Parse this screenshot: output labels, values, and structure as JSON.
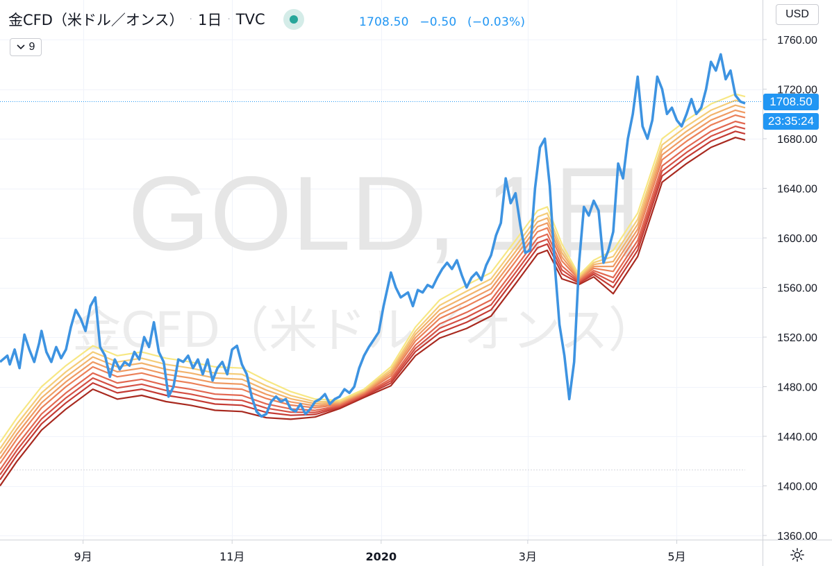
{
  "header": {
    "symbol_title": "金CFD（米ドル／オンス）",
    "interval": "1日",
    "exchange": "TVC",
    "separator": "·"
  },
  "quote": {
    "last": "1708.50",
    "change": "−0.50",
    "change_pct": "(−0.03%)"
  },
  "indicator_toggle": {
    "label": "9",
    "icon": "chevron-down-icon"
  },
  "currency": "USD",
  "price_tag": {
    "price": "1708.50",
    "countdown": "23:35:24"
  },
  "watermark": {
    "line1": "GOLD, 1日",
    "line2": "金CFD（米ドル／オンス）"
  },
  "settings_icon": "gear-icon",
  "colors": {
    "price_line": "#3d93e1",
    "ribbon": [
      "#f7e783",
      "#f5cc78",
      "#f2b36c",
      "#ef9a62",
      "#eb8058",
      "#e26750",
      "#d44f43",
      "#c43a33",
      "#a8291f"
    ]
  },
  "chart_data": {
    "type": "line",
    "title": "金CFD（米ドル／オンス）",
    "ylabel": "",
    "y_unit": "USD",
    "ylim": [
      1360,
      1770
    ],
    "xlim": [
      "2019-07-29",
      "2020-05-29"
    ],
    "y_ticks": [
      1360,
      1400,
      1440,
      1480,
      1520,
      1560,
      1600,
      1640,
      1680,
      1720,
      1760
    ],
    "y_tick_labels": [
      "1360.00",
      "1400.00",
      "1440.00",
      "1480.00",
      "1520.00",
      "1560.00",
      "1600.00",
      "1640.00",
      "1680.00",
      "1720.00",
      "1760.00"
    ],
    "x_ticks": [
      {
        "date": "2019-09-01",
        "label": "9月",
        "bold": false
      },
      {
        "date": "2019-11-01",
        "label": "11月",
        "bold": false
      },
      {
        "date": "2020-01-01",
        "label": "2020",
        "bold": true
      },
      {
        "date": "2020-03-01",
        "label": "3月",
        "bold": false
      },
      {
        "date": "2020-05-01",
        "label": "5月",
        "bold": false
      }
    ],
    "last_price": 1708.5,
    "dotted_level": 1414,
    "grid": true,
    "series": [
      {
        "name": "金CFD（米ドル／オンス）",
        "kind": "price",
        "points": [
          [
            "2019-07-29",
            1500
          ],
          [
            "2019-08-01",
            1505
          ],
          [
            "2019-08-02",
            1498
          ],
          [
            "2019-08-04",
            1510
          ],
          [
            "2019-08-06",
            1495
          ],
          [
            "2019-08-08",
            1522
          ],
          [
            "2019-08-10",
            1510
          ],
          [
            "2019-08-12",
            1500
          ],
          [
            "2019-08-14",
            1515
          ],
          [
            "2019-08-15",
            1525
          ],
          [
            "2019-08-17",
            1508
          ],
          [
            "2019-08-19",
            1500
          ],
          [
            "2019-08-21",
            1512
          ],
          [
            "2019-08-23",
            1503
          ],
          [
            "2019-08-25",
            1510
          ],
          [
            "2019-08-27",
            1528
          ],
          [
            "2019-08-29",
            1542
          ],
          [
            "2019-08-31",
            1535
          ],
          [
            "2019-09-02",
            1525
          ],
          [
            "2019-09-04",
            1545
          ],
          [
            "2019-09-06",
            1552
          ],
          [
            "2019-09-08",
            1512
          ],
          [
            "2019-09-10",
            1505
          ],
          [
            "2019-09-12",
            1488
          ],
          [
            "2019-09-14",
            1502
          ],
          [
            "2019-09-16",
            1494
          ],
          [
            "2019-09-18",
            1500
          ],
          [
            "2019-09-20",
            1497
          ],
          [
            "2019-09-22",
            1508
          ],
          [
            "2019-09-24",
            1502
          ],
          [
            "2019-09-26",
            1520
          ],
          [
            "2019-09-28",
            1512
          ],
          [
            "2019-09-30",
            1532
          ],
          [
            "2019-10-02",
            1508
          ],
          [
            "2019-10-04",
            1500
          ],
          [
            "2019-10-06",
            1472
          ],
          [
            "2019-10-08",
            1480
          ],
          [
            "2019-10-10",
            1502
          ],
          [
            "2019-10-12",
            1500
          ],
          [
            "2019-10-14",
            1505
          ],
          [
            "2019-10-16",
            1495
          ],
          [
            "2019-10-18",
            1502
          ],
          [
            "2019-10-20",
            1490
          ],
          [
            "2019-10-22",
            1502
          ],
          [
            "2019-10-24",
            1485
          ],
          [
            "2019-10-26",
            1495
          ],
          [
            "2019-10-28",
            1500
          ],
          [
            "2019-10-30",
            1490
          ],
          [
            "2019-11-01",
            1510
          ],
          [
            "2019-11-03",
            1513
          ],
          [
            "2019-11-05",
            1498
          ],
          [
            "2019-11-07",
            1490
          ],
          [
            "2019-11-09",
            1472
          ],
          [
            "2019-11-11",
            1460
          ],
          [
            "2019-11-13",
            1456
          ],
          [
            "2019-11-15",
            1458
          ],
          [
            "2019-11-17",
            1468
          ],
          [
            "2019-11-19",
            1472
          ],
          [
            "2019-11-21",
            1468
          ],
          [
            "2019-11-23",
            1470
          ],
          [
            "2019-11-25",
            1462
          ],
          [
            "2019-11-27",
            1460
          ],
          [
            "2019-11-29",
            1466
          ],
          [
            "2019-12-01",
            1458
          ],
          [
            "2019-12-03",
            1462
          ],
          [
            "2019-12-05",
            1468
          ],
          [
            "2019-12-07",
            1470
          ],
          [
            "2019-12-09",
            1474
          ],
          [
            "2019-12-11",
            1466
          ],
          [
            "2019-12-13",
            1470
          ],
          [
            "2019-12-15",
            1472
          ],
          [
            "2019-12-17",
            1478
          ],
          [
            "2019-12-19",
            1475
          ],
          [
            "2019-12-21",
            1480
          ],
          [
            "2019-12-23",
            1495
          ],
          [
            "2019-12-25",
            1505
          ],
          [
            "2019-12-27",
            1512
          ],
          [
            "2019-12-29",
            1518
          ],
          [
            "2019-12-31",
            1524
          ],
          [
            "2020-01-02",
            1545
          ],
          [
            "2020-01-05",
            1572
          ],
          [
            "2020-01-07",
            1560
          ],
          [
            "2020-01-09",
            1552
          ],
          [
            "2020-01-12",
            1556
          ],
          [
            "2020-01-14",
            1545
          ],
          [
            "2020-01-16",
            1558
          ],
          [
            "2020-01-18",
            1556
          ],
          [
            "2020-01-20",
            1562
          ],
          [
            "2020-01-22",
            1560
          ],
          [
            "2020-01-24",
            1568
          ],
          [
            "2020-01-26",
            1575
          ],
          [
            "2020-01-28",
            1580
          ],
          [
            "2020-01-30",
            1575
          ],
          [
            "2020-02-01",
            1582
          ],
          [
            "2020-02-03",
            1570
          ],
          [
            "2020-02-05",
            1560
          ],
          [
            "2020-02-07",
            1568
          ],
          [
            "2020-02-09",
            1572
          ],
          [
            "2020-02-11",
            1566
          ],
          [
            "2020-02-13",
            1578
          ],
          [
            "2020-02-15",
            1586
          ],
          [
            "2020-02-17",
            1602
          ],
          [
            "2020-02-19",
            1612
          ],
          [
            "2020-02-21",
            1648
          ],
          [
            "2020-02-23",
            1628
          ],
          [
            "2020-02-25",
            1636
          ],
          [
            "2020-02-27",
            1610
          ],
          [
            "2020-02-29",
            1588
          ],
          [
            "2020-03-02",
            1590
          ],
          [
            "2020-03-04",
            1640
          ],
          [
            "2020-03-06",
            1673
          ],
          [
            "2020-03-08",
            1680
          ],
          [
            "2020-03-10",
            1642
          ],
          [
            "2020-03-12",
            1580
          ],
          [
            "2020-03-14",
            1530
          ],
          [
            "2020-03-16",
            1505
          ],
          [
            "2020-03-18",
            1470
          ],
          [
            "2020-03-20",
            1500
          ],
          [
            "2020-03-22",
            1580
          ],
          [
            "2020-03-24",
            1625
          ],
          [
            "2020-03-26",
            1618
          ],
          [
            "2020-03-28",
            1630
          ],
          [
            "2020-03-30",
            1622
          ],
          [
            "2020-04-01",
            1580
          ],
          [
            "2020-04-03",
            1590
          ],
          [
            "2020-04-05",
            1605
          ],
          [
            "2020-04-07",
            1660
          ],
          [
            "2020-04-09",
            1648
          ],
          [
            "2020-04-11",
            1680
          ],
          [
            "2020-04-13",
            1700
          ],
          [
            "2020-04-15",
            1730
          ],
          [
            "2020-04-17",
            1690
          ],
          [
            "2020-04-19",
            1680
          ],
          [
            "2020-04-21",
            1695
          ],
          [
            "2020-04-23",
            1730
          ],
          [
            "2020-04-25",
            1720
          ],
          [
            "2020-04-27",
            1700
          ],
          [
            "2020-04-29",
            1705
          ],
          [
            "2020-05-01",
            1695
          ],
          [
            "2020-05-03",
            1690
          ],
          [
            "2020-05-05",
            1700
          ],
          [
            "2020-05-07",
            1712
          ],
          [
            "2020-05-09",
            1700
          ],
          [
            "2020-05-11",
            1705
          ],
          [
            "2020-05-13",
            1720
          ],
          [
            "2020-05-15",
            1742
          ],
          [
            "2020-05-17",
            1735
          ],
          [
            "2020-05-19",
            1748
          ],
          [
            "2020-05-21",
            1728
          ],
          [
            "2020-05-23",
            1735
          ],
          [
            "2020-05-25",
            1715
          ],
          [
            "2020-05-27",
            1710
          ],
          [
            "2020-05-29",
            1708.5
          ]
        ]
      },
      {
        "kind": "ma-ribbon",
        "levels": [
          [
            "2019-07-29",
            1435
          ],
          [
            "2019-08-05",
            1455
          ],
          [
            "2019-08-15",
            1480
          ],
          [
            "2019-08-25",
            1497
          ],
          [
            "2019-09-05",
            1513
          ],
          [
            "2019-09-15",
            1505
          ],
          [
            "2019-09-25",
            1508
          ],
          [
            "2019-10-05",
            1503
          ],
          [
            "2019-10-15",
            1500
          ],
          [
            "2019-10-25",
            1496
          ],
          [
            "2019-11-05",
            1495
          ],
          [
            "2019-11-15",
            1485
          ],
          [
            "2019-11-25",
            1476
          ],
          [
            "2019-12-05",
            1470
          ],
          [
            "2019-12-15",
            1469
          ],
          [
            "2019-12-25",
            1478
          ],
          [
            "2020-01-05",
            1496
          ],
          [
            "2020-01-15",
            1528
          ],
          [
            "2020-01-25",
            1550
          ],
          [
            "2020-02-05",
            1562
          ],
          [
            "2020-02-15",
            1572
          ],
          [
            "2020-02-25",
            1598
          ],
          [
            "2020-03-05",
            1622
          ],
          [
            "2020-03-09",
            1625
          ],
          [
            "2020-03-15",
            1595
          ],
          [
            "2020-03-22",
            1570
          ],
          [
            "2020-03-28",
            1582
          ],
          [
            "2020-04-05",
            1590
          ],
          [
            "2020-04-15",
            1620
          ],
          [
            "2020-04-25",
            1680
          ],
          [
            "2020-05-05",
            1695
          ],
          [
            "2020-05-15",
            1708
          ],
          [
            "2020-05-25",
            1716
          ],
          [
            "2020-05-29",
            1714
          ]
        ],
        "offsets": [
          0,
          -5,
          -9,
          -13,
          -17,
          -22,
          -26,
          -30,
          -35
        ]
      }
    ]
  }
}
